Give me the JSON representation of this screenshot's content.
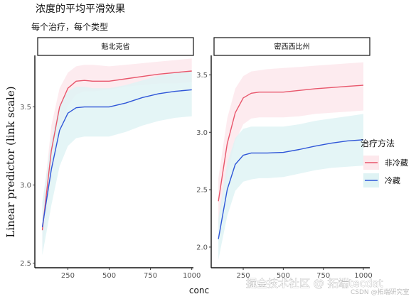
{
  "chart_data": {
    "type": "line",
    "title": "浓度的平均平滑效果",
    "subtitle": "每个治疗，每个类型",
    "xlabel": "conc",
    "ylabel": "Linear predictor (link scale)",
    "legend": {
      "title": "治疗方法",
      "placement": "right",
      "entries": [
        {
          "label": "非冷藏",
          "color": "#e8566b",
          "band_color": "#fde8ec"
        },
        {
          "label": "冷藏",
          "color": "#2f56d8",
          "band_color": "#dff3f4"
        }
      ]
    },
    "x_ticks": [
      250,
      500,
      750,
      1000
    ],
    "x_tick_labels": [
      "250",
      "500",
      "750",
      "1000"
    ],
    "panels": [
      {
        "strip": "魁北克省",
        "xlim": [
          50,
          1010
        ],
        "ylim": [
          2.47,
          3.83
        ],
        "y_ticks": [
          2.5,
          3.0,
          3.5
        ],
        "y_tick_labels": [
          "2.5",
          "3.0",
          "3.5"
        ],
        "series": [
          {
            "name": "非冷藏",
            "x": [
              95,
              150,
              200,
              250,
              300,
              350,
              400,
              500,
              600,
              700,
              800,
              900,
              1000
            ],
            "y": [
              2.71,
              3.22,
              3.5,
              3.62,
              3.665,
              3.67,
              3.665,
              3.665,
              3.68,
              3.695,
              3.71,
              3.72,
              3.73
            ],
            "lower": [
              2.58,
              3.02,
              3.34,
              3.51,
              3.58,
              3.6,
              3.6,
              3.61,
              3.63,
              3.64,
              3.65,
              3.65,
              3.66
            ],
            "upper": [
              2.83,
              3.38,
              3.62,
              3.72,
              3.76,
              3.77,
              3.77,
              3.76,
              3.77,
              3.78,
              3.79,
              3.8,
              3.81
            ]
          },
          {
            "name": "冷藏",
            "x": [
              95,
              150,
              200,
              250,
              300,
              350,
              400,
              500,
              600,
              700,
              800,
              900,
              1000
            ],
            "y": [
              2.73,
              3.1,
              3.35,
              3.46,
              3.495,
              3.5,
              3.5,
              3.5,
              3.525,
              3.56,
              3.585,
              3.6,
              3.61
            ],
            "lower": [
              2.55,
              2.87,
              3.12,
              3.25,
              3.3,
              3.31,
              3.31,
              3.31,
              3.34,
              3.38,
              3.41,
              3.43,
              3.44
            ],
            "upper": [
              2.89,
              3.29,
              3.52,
              3.6,
              3.63,
              3.63,
              3.62,
              3.62,
              3.64,
              3.67,
              3.7,
              3.72,
              3.73
            ]
          }
        ]
      },
      {
        "strip": "密西西比州",
        "xlim": [
          50,
          1040
        ],
        "ylim": [
          1.82,
          3.67
        ],
        "y_ticks": [
          2.0,
          2.5,
          3.0,
          3.5
        ],
        "y_tick_labels": [
          "2.0",
          "2.5",
          "3.0",
          "3.5"
        ],
        "series": [
          {
            "name": "非冷藏",
            "x": [
              95,
              150,
              200,
              250,
              300,
              350,
              400,
              500,
              600,
              700,
              800,
              900,
              1000
            ],
            "y": [
              2.4,
              2.9,
              3.17,
              3.3,
              3.34,
              3.35,
              3.35,
              3.35,
              3.365,
              3.38,
              3.39,
              3.4,
              3.41
            ],
            "lower": [
              2.18,
              2.62,
              2.92,
              3.07,
              3.12,
              3.13,
              3.13,
              3.13,
              3.14,
              3.16,
              3.17,
              3.18,
              3.19
            ],
            "upper": [
              2.6,
              3.12,
              3.38,
              3.49,
              3.53,
              3.54,
              3.55,
              3.56,
              3.57,
              3.58,
              3.59,
              3.6,
              3.61
            ]
          },
          {
            "name": "冷藏",
            "x": [
              95,
              150,
              200,
              250,
              300,
              350,
              400,
              500,
              600,
              700,
              800,
              900,
              1000
            ],
            "y": [
              2.07,
              2.5,
              2.72,
              2.8,
              2.82,
              2.82,
              2.82,
              2.825,
              2.85,
              2.88,
              2.905,
              2.925,
              2.935
            ],
            "lower": [
              1.89,
              2.27,
              2.49,
              2.57,
              2.59,
              2.6,
              2.6,
              2.61,
              2.64,
              2.67,
              2.69,
              2.7,
              2.71
            ],
            "upper": [
              2.25,
              2.73,
              2.95,
              3.03,
              3.05,
              3.05,
              3.05,
              3.05,
              3.07,
              3.1,
              3.12,
              3.14,
              3.16
            ]
          }
        ]
      }
    ]
  },
  "watermark": {
    "main": "掘金技术社区 @ 拓端tecdat",
    "sub": "CSDN @拓端研究室"
  }
}
